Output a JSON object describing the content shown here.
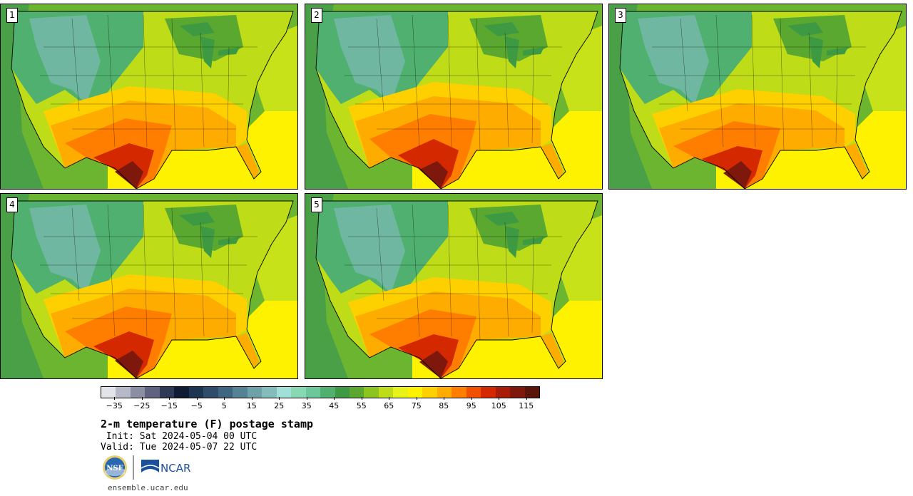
{
  "panels": [
    {
      "label": "1"
    },
    {
      "label": "2"
    },
    {
      "label": "3"
    },
    {
      "label": "4"
    },
    {
      "label": "5"
    }
  ],
  "colorbar": {
    "colors": [
      "#e3e3ea",
      "#b8b9c8",
      "#8c8ea3",
      "#5f6380",
      "#2e3a55",
      "#101c33",
      "#1d3550",
      "#2f4d6b",
      "#3f6680",
      "#568393",
      "#6ea1a8",
      "#83bcbb",
      "#a0e0d8",
      "#88d8b4",
      "#6cc89a",
      "#4fb06f",
      "#3d9a43",
      "#5aa830",
      "#8cc420",
      "#bedc18",
      "#e6f218",
      "#fff200",
      "#ffd000",
      "#ffac00",
      "#ff7e00",
      "#f05000",
      "#d42800",
      "#a81c08",
      "#7e180c",
      "#5a140a"
    ],
    "tick_values": [
      "-35",
      "-25",
      "-15",
      "-5",
      "5",
      "15",
      "25",
      "35",
      "45",
      "55",
      "65",
      "75",
      "85",
      "95",
      "105",
      "115"
    ],
    "min": -40,
    "max": 120
  },
  "title": "2-m temperature (F) postage stamp",
  "init": " Init: Sat 2024-05-04 00 UTC",
  "valid": "Valid: Tue 2024-05-07 22 UTC",
  "logos": {
    "nsf_text": "NSF",
    "ncar_text": "NCAR"
  },
  "url": "ensemble.ucar.edu"
}
